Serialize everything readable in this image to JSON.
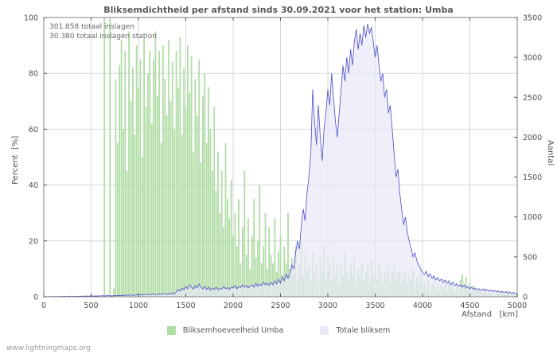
{
  "chart": {
    "title": "Bliksemdichtheid per afstand sinds 30.09.2021 voor het station: Umba",
    "annotations": [
      "301.858 totaal inslagen",
      "30.380 totaal inslagen station"
    ],
    "ylabel_left": "Percent  [%]",
    "ylabel_right": "Aantal",
    "xlabel": "Afstand   [km]",
    "watermark": "www.lightningmaps.org",
    "legend": [
      {
        "label": "Bliksemhoeveelheid Umba",
        "color": "#b0dda6"
      },
      {
        "label": "Totale bliksem",
        "color": "#eaeaf8"
      }
    ],
    "colors": {
      "bar_green": "#b0dda6",
      "line_blue": "#4a4ac8",
      "area_lavender": "rgba(232,232,248,0.7)",
      "grid": "#d8d8d8",
      "border": "#808080",
      "tick_text": "#4d4d4d"
    }
  },
  "chart_data": {
    "type": "bar",
    "subtype": "bar+area-line dual axis",
    "x_range": [
      0,
      5000
    ],
    "x_start": 0,
    "x_step": 20,
    "x_ticks": [
      0,
      500,
      1000,
      1500,
      2000,
      2500,
      3000,
      3500,
      4000,
      4500,
      5000
    ],
    "left_axis": {
      "label": "Percent [%]",
      "range": [
        0,
        100
      ],
      "ticks": [
        0,
        20,
        40,
        60,
        80,
        100
      ]
    },
    "right_axis": {
      "label": "Aantal",
      "range": [
        0,
        3500
      ],
      "ticks": [
        0,
        500,
        1000,
        1500,
        2000,
        2500,
        3000,
        3500
      ]
    },
    "series": [
      {
        "name": "Bliksemhoeveelheid Umba",
        "type": "bar",
        "axis": "left",
        "values": [
          0,
          0,
          0,
          0,
          0,
          0,
          0,
          0,
          0,
          0,
          0,
          0,
          0,
          0,
          0,
          0,
          0,
          0,
          0,
          0,
          0,
          0,
          0,
          0,
          0,
          0,
          0,
          0,
          0,
          0,
          0,
          0,
          100,
          0,
          0,
          100,
          0,
          3,
          78,
          55,
          83,
          92,
          60,
          88,
          45,
          95,
          70,
          82,
          58,
          90,
          75,
          85,
          50,
          93,
          68,
          80,
          88,
          62,
          85,
          95,
          72,
          88,
          55,
          90,
          78,
          65,
          92,
          70,
          84,
          60,
          88,
          75,
          93,
          58,
          82,
          68,
          90,
          73,
          86,
          52,
          78,
          65,
          85,
          48,
          72,
          80,
          55,
          75,
          60,
          45,
          68,
          38,
          52,
          30,
          45,
          25,
          55,
          35,
          28,
          42,
          22,
          30,
          18,
          35,
          12,
          25,
          45,
          15,
          28,
          10,
          22,
          35,
          14,
          20,
          40,
          12,
          18,
          30,
          10,
          25,
          15,
          12,
          28,
          9,
          16,
          22,
          8,
          18,
          12,
          30,
          10,
          14,
          8,
          18,
          6,
          12,
          20,
          7,
          15,
          9,
          11,
          6,
          16,
          8,
          12,
          5,
          14,
          9,
          18,
          7,
          10,
          12,
          6,
          15,
          8,
          11,
          5,
          13,
          7,
          16,
          9,
          6,
          12,
          8,
          14,
          5,
          10,
          7,
          12,
          6,
          9,
          11,
          5,
          13,
          7,
          10,
          6,
          12,
          8,
          5,
          9,
          7,
          11,
          5,
          9,
          12,
          6,
          8,
          10,
          5,
          7,
          9,
          5,
          8,
          6,
          10,
          4,
          7,
          5,
          8,
          4,
          5,
          3,
          6,
          2,
          4,
          7,
          3,
          5,
          2,
          4,
          3,
          5,
          2,
          6,
          3,
          4,
          2,
          5,
          3,
          6,
          8,
          4,
          7,
          3,
          5,
          2,
          4,
          3,
          2,
          3,
          2,
          1,
          3,
          1,
          2,
          1,
          2,
          1,
          1,
          2,
          1,
          2,
          1,
          1,
          2,
          1,
          1,
          1,
          0,
          1
        ]
      },
      {
        "name": "Totale bliksem",
        "type": "area-line",
        "axis": "right",
        "values": [
          0,
          2,
          1,
          3,
          2,
          4,
          3,
          2,
          5,
          3,
          4,
          6,
          3,
          5,
          8,
          4,
          6,
          5,
          7,
          5,
          8,
          6,
          10,
          7,
          9,
          12,
          8,
          10,
          9,
          11,
          10,
          14,
          9,
          12,
          15,
          10,
          13,
          11,
          16,
          12,
          18,
          12,
          20,
          15,
          22,
          16,
          25,
          18,
          20,
          24,
          20,
          28,
          22,
          30,
          24,
          32,
          26,
          28,
          35,
          25,
          30,
          38,
          28,
          35,
          42,
          30,
          38,
          32,
          45,
          35,
          60,
          90,
          70,
          110,
          85,
          130,
          100,
          150,
          120,
          95,
          140,
          110,
          160,
          120,
          100,
          130,
          90,
          120,
          80,
          110,
          90,
          120,
          85,
          110,
          95,
          130,
          100,
          115,
          90,
          120,
          110,
          140,
          100,
          130,
          115,
          150,
          120,
          140,
          110,
          135,
          150,
          120,
          170,
          130,
          160,
          140,
          180,
          150,
          170,
          145,
          180,
          150,
          200,
          160,
          220,
          170,
          250,
          200,
          280,
          230,
          300,
          400,
          350,
          550,
          700,
          600,
          900,
          1100,
          950,
          1300,
          1500,
          1800,
          2600,
          2200,
          1900,
          2400,
          2000,
          1700,
          2100,
          2300,
          2600,
          2400,
          2800,
          2500,
          2200,
          2000,
          2300,
          2600,
          2900,
          2700,
          3000,
          2800,
          3100,
          2900,
          3200,
          3350,
          3100,
          3300,
          3150,
          3400,
          3250,
          3420,
          3300,
          3380,
          3200,
          3000,
          3150,
          2900,
          2700,
          2800,
          2500,
          2600,
          2300,
          2400,
          2100,
          1800,
          1500,
          1600,
          1300,
          1100,
          900,
          1000,
          800,
          700,
          600,
          500,
          550,
          450,
          400,
          350,
          300,
          280,
          320,
          250,
          290,
          230,
          260,
          210,
          240,
          200,
          220,
          180,
          210,
          170,
          190,
          150,
          180,
          140,
          160,
          130,
          150,
          120,
          150,
          110,
          130,
          100,
          120,
          90,
          110,
          85,
          100,
          80,
          100,
          75,
          90,
          70,
          85,
          65,
          80,
          60,
          75,
          55,
          70,
          50,
          65,
          45,
          60,
          40,
          55,
          35,
          50
        ]
      }
    ],
    "title": "Bliksemdichtheid per afstand sinds 30.09.2021 voor het station: Umba",
    "xlabel": "Afstand [km]",
    "grid": true,
    "legend_position": "bottom-center"
  }
}
